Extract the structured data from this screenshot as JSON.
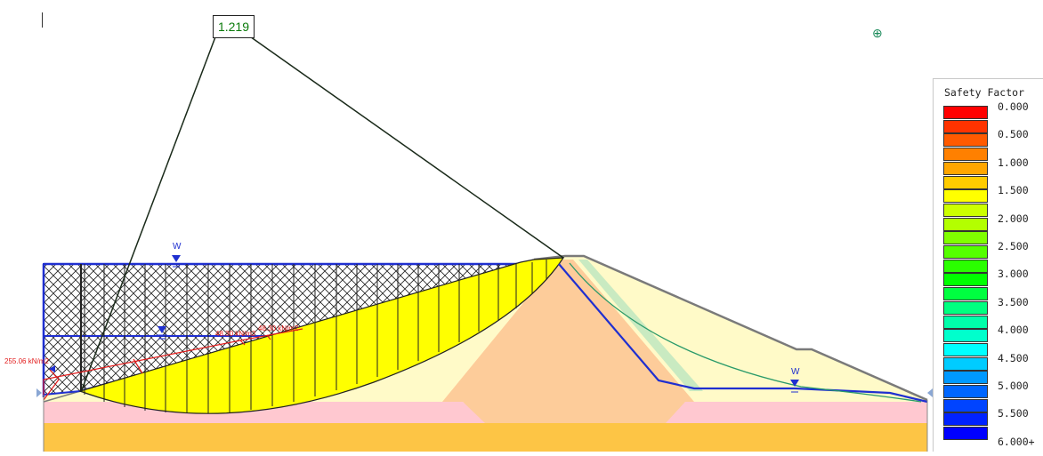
{
  "analysis": {
    "min_safety_factor": "1.219"
  },
  "water_table_labels": [
    "W",
    "W"
  ],
  "load_labels": {
    "left_load": "255.06 kN/m2",
    "mid_load_a": "48.30 kN/m2",
    "mid_load_b": "48.30 kN/m2"
  },
  "legend": {
    "title": "Safety Factor",
    "ticks": [
      "0.000",
      "0.500",
      "1.000",
      "1.500",
      "2.000",
      "2.500",
      "3.000",
      "3.500",
      "4.000",
      "4.500",
      "5.000",
      "5.500",
      "6.000+"
    ],
    "colors": [
      "#ff0000",
      "#ff3300",
      "#ff5a00",
      "#ff8000",
      "#ffa600",
      "#ffcc00",
      "#ffff00",
      "#ccff00",
      "#b3ff00",
      "#80ff00",
      "#55ff00",
      "#2aff00",
      "#00ff00",
      "#00ff40",
      "#00ff80",
      "#00ffaa",
      "#00ffcc",
      "#00ffff",
      "#00ccff",
      "#0099ff",
      "#0066ff",
      "#0044ff",
      "#0022ff",
      "#0000ff"
    ]
  },
  "icons": {
    "crosshair": "crosshair-icon",
    "water_table": "water-table-icon"
  }
}
